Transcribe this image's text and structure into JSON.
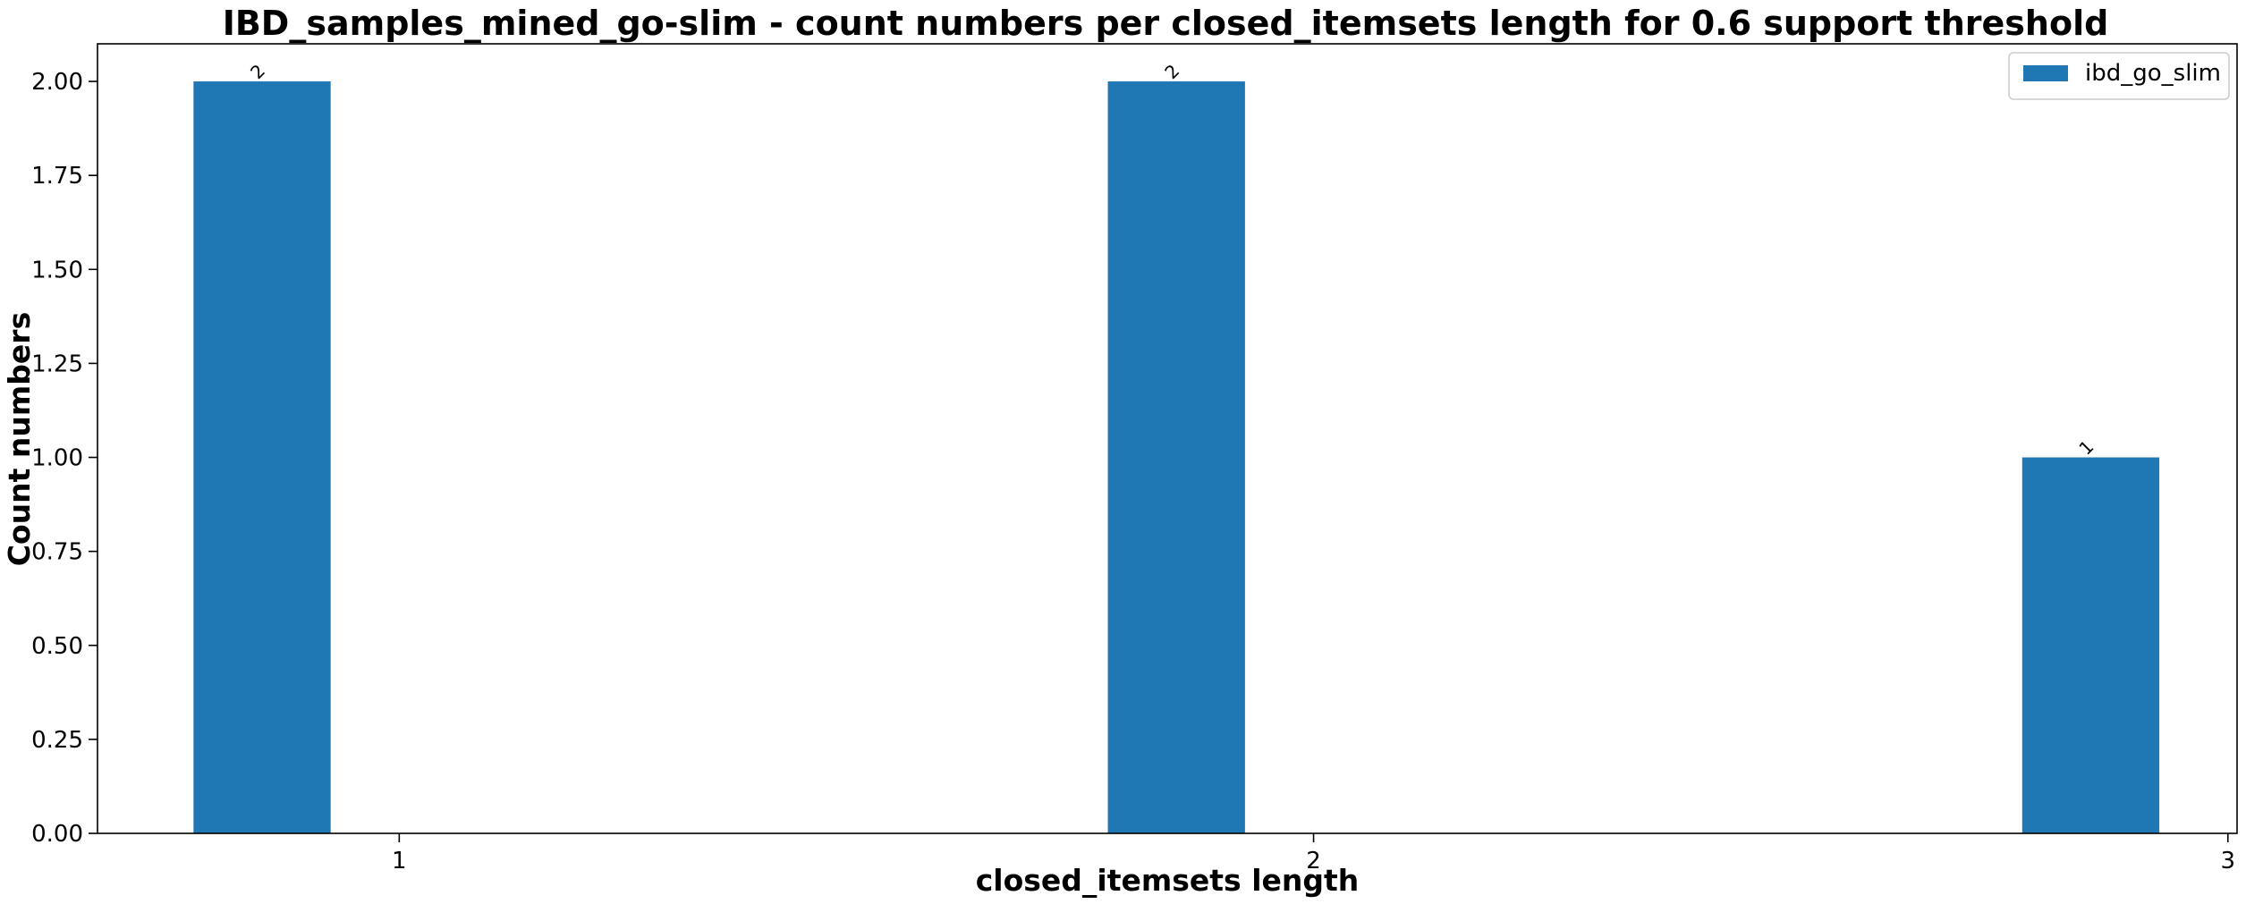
{
  "chart_data": {
    "type": "bar",
    "title": "IBD_samples_mined_go-slim - count numbers per closed_itemsets length for 0.6 support threshold",
    "xlabel": "closed_itemsets length",
    "ylabel": "Count numbers",
    "categories": [
      "1",
      "2",
      "3"
    ],
    "series": [
      {
        "name": "ibd_go_slim",
        "values": [
          2,
          2,
          1
        ],
        "color": "#1f77b4"
      }
    ],
    "data_labels": [
      "2",
      "2",
      "1"
    ],
    "ylim": [
      0,
      2.1
    ],
    "xlim": [
      0.67,
      3.01
    ],
    "yticks": [
      0,
      0.25,
      0.5,
      0.75,
      1.0,
      1.25,
      1.5,
      1.75,
      2.0
    ],
    "ytick_labels": [
      "0.00",
      "0.25",
      "0.50",
      "0.75",
      "1.00",
      "1.25",
      "1.50",
      "1.75",
      "2.00"
    ],
    "xticks": [
      1,
      2,
      3
    ],
    "xtick_labels": [
      "1",
      "2",
      "3"
    ],
    "bar_width": 0.15,
    "bar_offset": -0.15,
    "grid": false,
    "legend_position": "top-right"
  }
}
